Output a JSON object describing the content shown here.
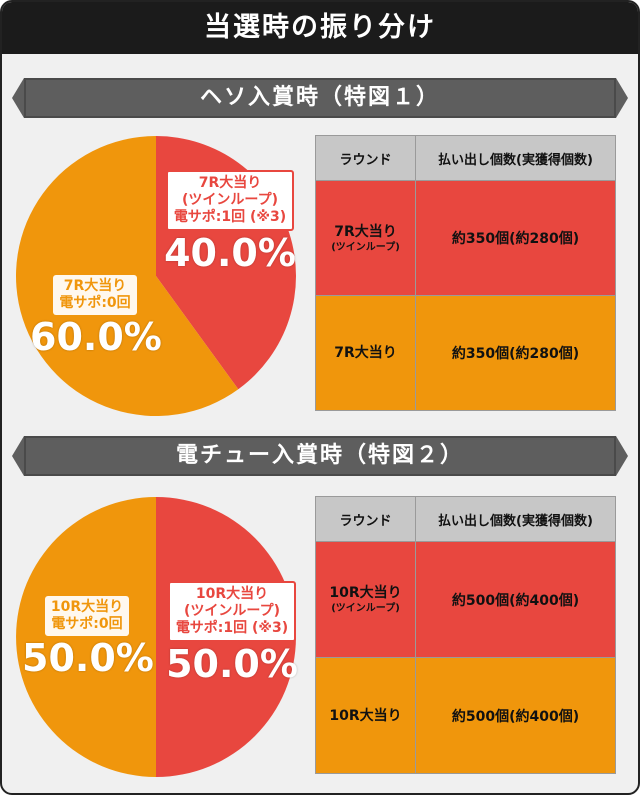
{
  "header": {
    "title": "当選時の振り分け"
  },
  "sections": [
    {
      "title": "ヘソ入賞時（特図１）",
      "pie": {
        "red": {
          "line1": "7R大当り",
          "line2": "(ツインループ)",
          "line3": "電サポ:1回 (※3)",
          "pct": "40.0%"
        },
        "orange": {
          "line1": "7R大当り",
          "line2": "電サポ:0回",
          "pct": "60.0%"
        }
      },
      "table": {
        "headers": [
          "ラウンド",
          "払い出し個数(実獲得個数)"
        ],
        "rows": [
          {
            "round": "7R大当り",
            "round_sub": "(ツインループ)",
            "payout": "約350個(約280個)"
          },
          {
            "round": "7R大当り",
            "round_sub": "",
            "payout": "約350個(約280個)"
          }
        ]
      }
    },
    {
      "title": "電チュー入賞時（特図２）",
      "pie": {
        "red": {
          "line1": "10R大当り",
          "line2": "(ツインループ)",
          "line3": "電サポ:1回 (※3)",
          "pct": "50.0%"
        },
        "orange": {
          "line1": "10R大当り",
          "line2": "電サポ:0回",
          "pct": "50.0%"
        }
      },
      "table": {
        "headers": [
          "ラウンド",
          "払い出し個数(実獲得個数)"
        ],
        "rows": [
          {
            "round": "10R大当り",
            "round_sub": "(ツインループ)",
            "payout": "約500個(約400個)"
          },
          {
            "round": "10R大当り",
            "round_sub": "",
            "payout": "約500個(約400個)"
          }
        ]
      }
    }
  ],
  "chart_data": [
    {
      "type": "pie",
      "categories": [
        "7R大当り (ツインループ) 電サポ:1回 (※3)",
        "7R大当り 電サポ:0回"
      ],
      "values": [
        40.0,
        60.0
      ],
      "colors": [
        "#e8473f",
        "#f0960c"
      ]
    },
    {
      "type": "pie",
      "categories": [
        "10R大当り (ツインループ) 電サポ:1回 (※3)",
        "10R大当り 電サポ:0回"
      ],
      "values": [
        50.0,
        50.0
      ],
      "colors": [
        "#e8473f",
        "#f0960c"
      ]
    }
  ]
}
